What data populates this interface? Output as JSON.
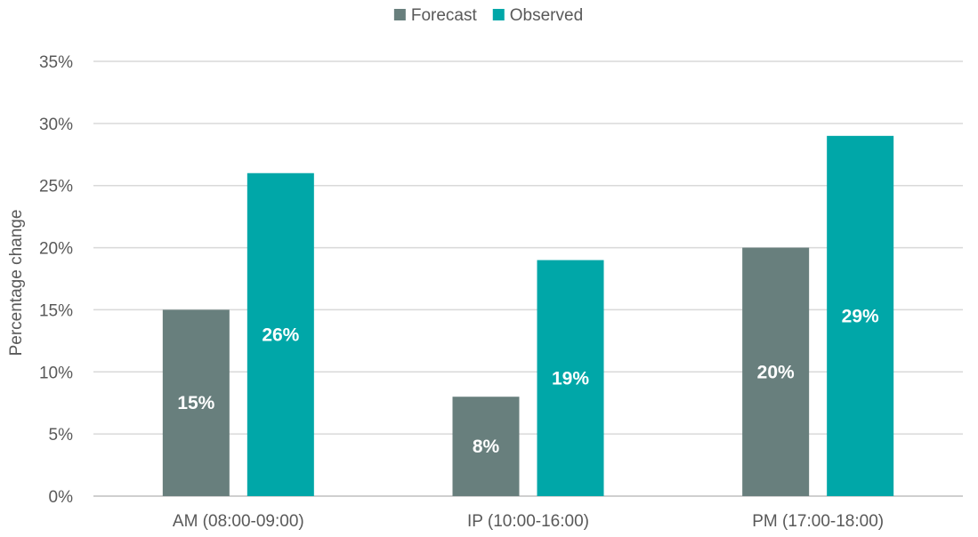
{
  "chart_data": {
    "type": "bar",
    "title": "",
    "xlabel": "",
    "ylabel": "Percentage change",
    "ylim": [
      0,
      35
    ],
    "yticks": [
      0,
      5,
      10,
      15,
      20,
      25,
      30,
      35
    ],
    "ytick_labels": [
      "0%",
      "5%",
      "10%",
      "15%",
      "20%",
      "25%",
      "30%",
      "35%"
    ],
    "categories": [
      "AM (08:00-09:00)",
      "IP (10:00-16:00)",
      "PM (17:00-18:00)"
    ],
    "series": [
      {
        "name": "Forecast",
        "color": "#687f7d",
        "values": [
          15,
          8,
          20
        ],
        "labels": [
          "15%",
          "8%",
          "20%"
        ]
      },
      {
        "name": "Observed",
        "color": "#00a7a8",
        "values": [
          26,
          19,
          29
        ],
        "labels": [
          "26%",
          "19%",
          "29%"
        ]
      }
    ],
    "legend": "top-center",
    "grid": true
  }
}
